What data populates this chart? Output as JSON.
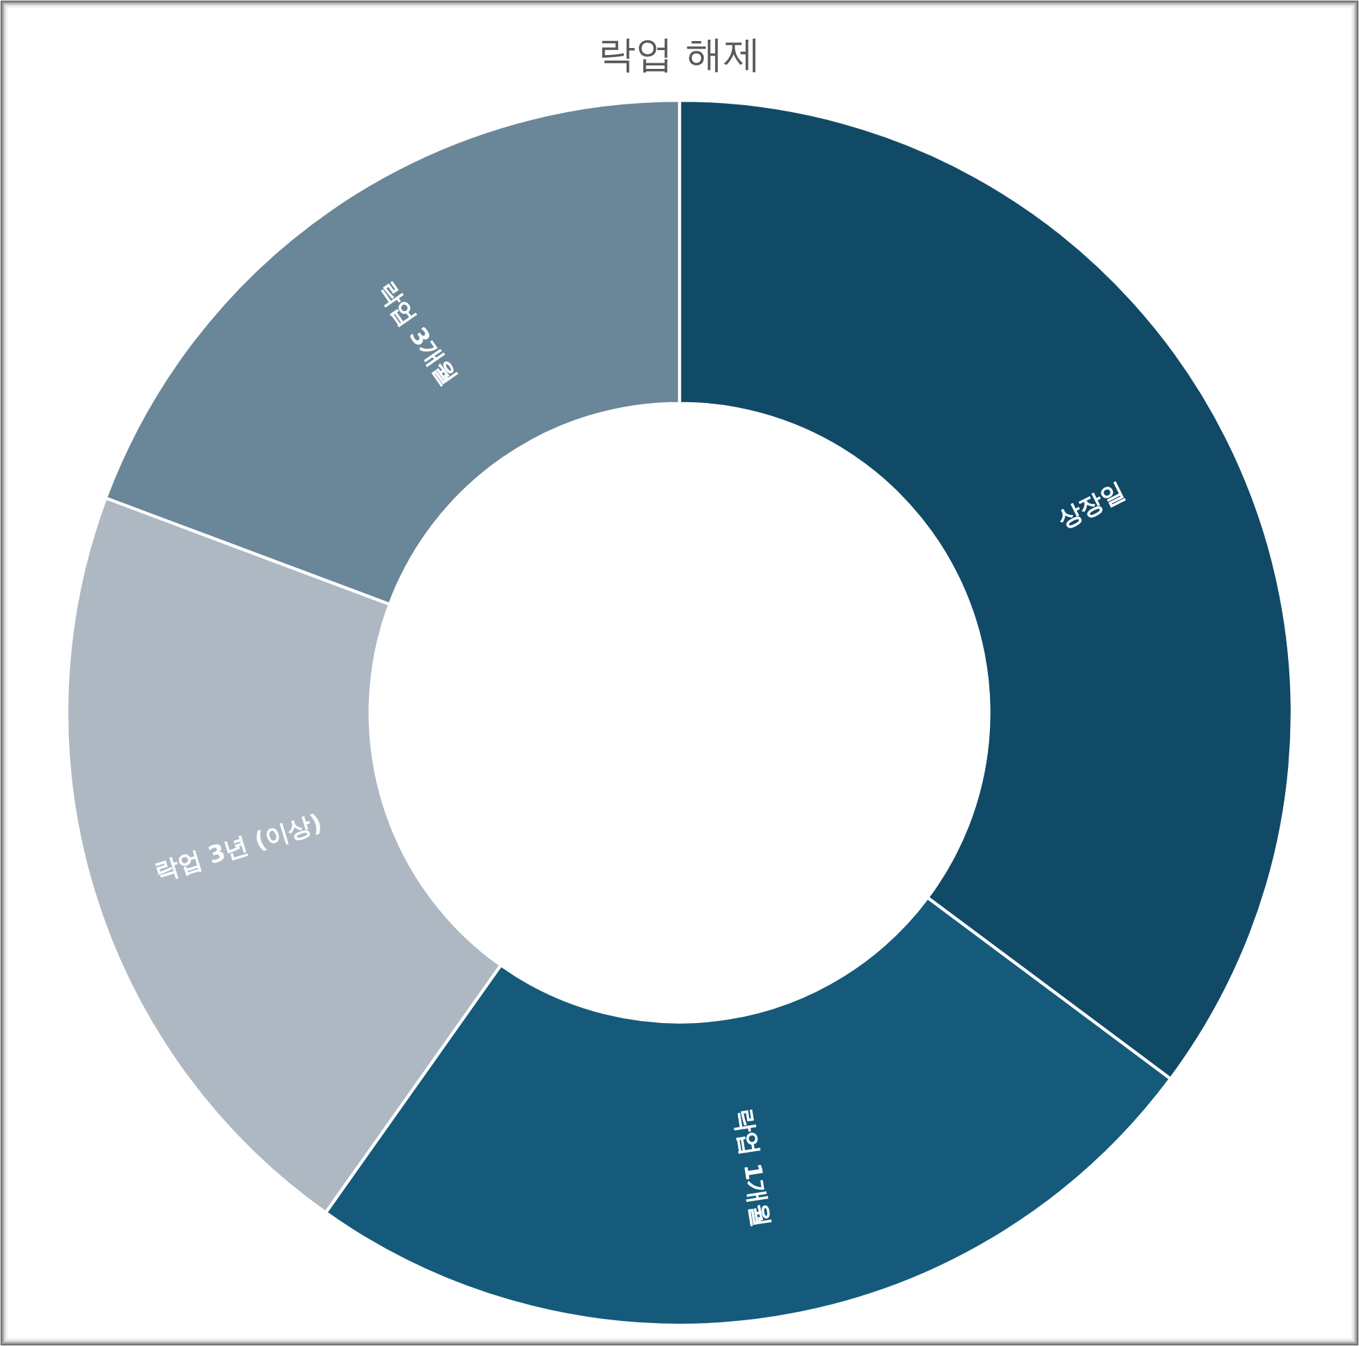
{
  "chart_data": {
    "type": "donut",
    "title": "락업 해제",
    "categories": [
      "상장일",
      "락업 1개월",
      "락업 3년 (이상)",
      "락업 3개월"
    ],
    "values": [
      35.2,
      24.6,
      20.9,
      19.3
    ],
    "colors": [
      "#114a66",
      "#155a7a",
      "#adb8c3",
      "#6a8699"
    ]
  }
}
